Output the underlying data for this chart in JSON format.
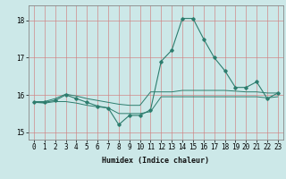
{
  "title": "",
  "xlabel": "Humidex (Indice chaleur)",
  "background_color": "#cce8e8",
  "line_color": "#2d7d6e",
  "grid_color": "#d08080",
  "x_values": [
    0,
    1,
    2,
    3,
    4,
    5,
    6,
    7,
    8,
    9,
    10,
    11,
    12,
    13,
    14,
    15,
    16,
    17,
    18,
    19,
    20,
    21,
    22,
    23
  ],
  "y_main": [
    15.8,
    15.8,
    15.85,
    16.0,
    15.9,
    15.8,
    15.7,
    15.65,
    15.2,
    15.45,
    15.45,
    15.6,
    16.9,
    17.2,
    18.05,
    18.05,
    17.5,
    17.0,
    16.65,
    16.2,
    16.2,
    16.35,
    15.9,
    16.05
  ],
  "y_min": [
    15.8,
    15.78,
    15.82,
    15.82,
    15.78,
    15.72,
    15.68,
    15.65,
    15.5,
    15.5,
    15.5,
    15.55,
    15.95,
    15.95,
    15.95,
    15.95,
    15.95,
    15.95,
    15.95,
    15.95,
    15.95,
    15.95,
    15.92,
    15.95
  ],
  "y_max": [
    15.82,
    15.82,
    15.9,
    16.02,
    15.97,
    15.9,
    15.85,
    15.8,
    15.75,
    15.72,
    15.72,
    16.08,
    16.08,
    16.08,
    16.12,
    16.12,
    16.12,
    16.12,
    16.12,
    16.1,
    16.08,
    16.08,
    16.05,
    16.05
  ],
  "ylim": [
    14.8,
    18.4
  ],
  "xlim": [
    -0.5,
    23.5
  ],
  "yticks": [
    15,
    16,
    17,
    18
  ],
  "xticks": [
    0,
    1,
    2,
    3,
    4,
    5,
    6,
    7,
    8,
    9,
    10,
    11,
    12,
    13,
    14,
    15,
    16,
    17,
    18,
    19,
    20,
    21,
    22,
    23
  ]
}
